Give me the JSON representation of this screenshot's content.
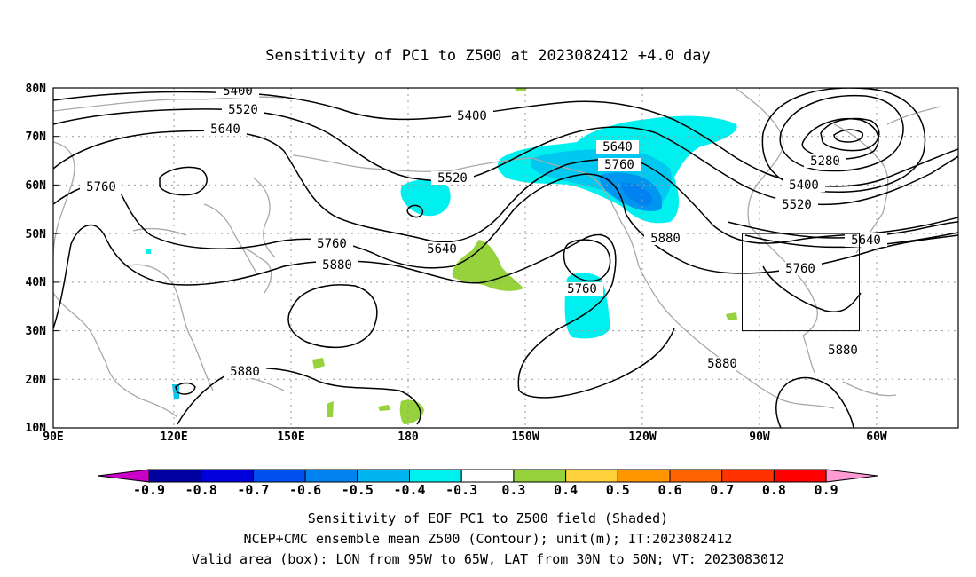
{
  "title": "Sensitivity of PC1 to Z500 at 2023082412 +4.0 day",
  "map": {
    "lat_ticks": [
      "80N",
      "70N",
      "60N",
      "50N",
      "40N",
      "30N",
      "20N",
      "10N"
    ],
    "lon_ticks": [
      "90E",
      "120E",
      "150E",
      "180",
      "150W",
      "120W",
      "90W",
      "60W"
    ],
    "lon_range": [
      90,
      325
    ],
    "lat_range": [
      10,
      80
    ],
    "grid": true,
    "contour_labels": [
      "5400",
      "5520",
      "5640",
      "5760",
      "5400",
      "5520",
      "5640",
      "5760",
      "5880",
      "5760",
      "5640",
      "5880",
      "5760",
      "5280",
      "5400",
      "5520",
      "5640",
      "5760",
      "5880",
      "5880",
      "5880"
    ],
    "box": {
      "lon": [
        265,
        295
      ],
      "lat": [
        30,
        50
      ]
    },
    "colors": {
      "neg_03_04": "#00f0f0",
      "neg_04_05": "#00c8f0",
      "neg_05_06": "#0096f0",
      "pos_03_04": "#96d23c",
      "contour": "#000000",
      "coast": "#a8a8a8"
    }
  },
  "colorbar": {
    "labels": [
      "-0.9",
      "-0.8",
      "-0.7",
      "-0.6",
      "-0.5",
      "-0.4",
      "-0.3",
      "0.3",
      "0.4",
      "0.5",
      "0.6",
      "0.7",
      "0.8",
      "0.9"
    ],
    "colors": [
      "#c800c8",
      "#0000a0",
      "#0000dc",
      "#0050f0",
      "#0082f0",
      "#00b4f0",
      "#00f0f0",
      "#ffffff",
      "#96d23c",
      "#ffd23c",
      "#ff9600",
      "#ff6400",
      "#ff3200",
      "#ff0000",
      "#ff9bd2"
    ]
  },
  "footer": {
    "line1": "Sensitivity of EOF PC1 to Z500 field (Shaded)",
    "line2": "NCEP+CMC ensemble mean Z500 (Contour); unit(m); IT:2023082412",
    "line3": "Valid area (box): LON from 95W to 65W, LAT from 30N to 50N; VT: 2023083012"
  }
}
